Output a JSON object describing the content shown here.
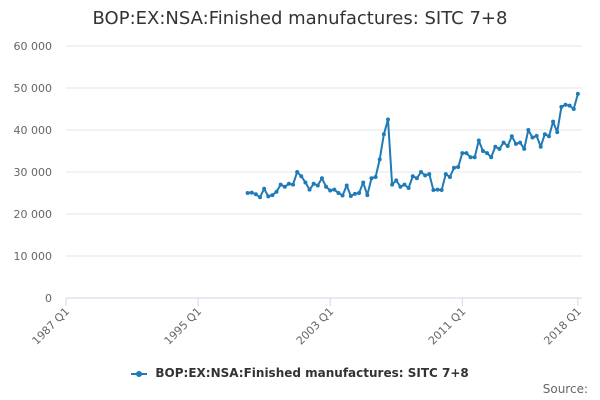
{
  "colors": {
    "series": "#1f7ab8",
    "grid": "#e6e6e6",
    "axis": "#ccd6eb"
  },
  "source_label": "Source:",
  "chart_data": {
    "type": "line",
    "title": "BOP:EX:NSA:Finished manufactures: SITC 7+8",
    "xlabel": "",
    "ylabel": "",
    "x_ticks": [
      "1987 Q1",
      "1995 Q1",
      "2003 Q1",
      "2011 Q1",
      "2018 Q1"
    ],
    "y_ticks": [
      "0",
      "10 000",
      "20 000",
      "30 000",
      "40 000",
      "50 000",
      "60 000"
    ],
    "x_range": [
      1987.0,
      2018.25
    ],
    "ylim": [
      0,
      60000
    ],
    "grid": "horizontal",
    "legend": "bottom-center",
    "series": [
      {
        "name": "BOP:EX:NSA:Finished manufactures: SITC 7+8",
        "x": [
          1998.0,
          1998.25,
          1998.5,
          1998.75,
          1999.0,
          1999.25,
          1999.5,
          1999.75,
          2000.0,
          2000.25,
          2000.5,
          2000.75,
          2001.0,
          2001.25,
          2001.5,
          2001.75,
          2002.0,
          2002.25,
          2002.5,
          2002.75,
          2003.0,
          2003.25,
          2003.5,
          2003.75,
          2004.0,
          2004.25,
          2004.5,
          2004.75,
          2005.0,
          2005.25,
          2005.5,
          2005.75,
          2006.0,
          2006.25,
          2006.5,
          2006.75,
          2007.0,
          2007.25,
          2007.5,
          2007.75,
          2008.0,
          2008.25,
          2008.5,
          2008.75,
          2009.0,
          2009.25,
          2009.5,
          2009.75,
          2010.0,
          2010.25,
          2010.5,
          2010.75,
          2011.0,
          2011.25,
          2011.5,
          2011.75,
          2012.0,
          2012.25,
          2012.5,
          2012.75,
          2013.0,
          2013.25,
          2013.5,
          2013.75,
          2014.0,
          2014.25,
          2014.5,
          2014.75,
          2015.0,
          2015.25,
          2015.5,
          2015.75,
          2016.0,
          2016.25,
          2016.5,
          2016.75,
          2017.0,
          2017.25,
          2017.5,
          2017.75,
          2018.0
        ],
        "values": [
          25000,
          25100,
          24700,
          24000,
          26000,
          24200,
          24500,
          25300,
          27000,
          26500,
          27200,
          27000,
          30000,
          29000,
          27500,
          25800,
          27200,
          26800,
          28500,
          26500,
          25600,
          25800,
          25000,
          24400,
          26800,
          24300,
          24800,
          25000,
          27500,
          24500,
          28500,
          28800,
          33000,
          39000,
          42500,
          27000,
          28000,
          26500,
          27000,
          26200,
          29000,
          28500,
          30000,
          29200,
          29500,
          25700,
          25800,
          25700,
          29500,
          28800,
          31000,
          31200,
          34500,
          34500,
          33500,
          33500,
          37500,
          35000,
          34500,
          33500,
          36000,
          35500,
          37000,
          36200,
          38500,
          36700,
          37000,
          35500,
          40000,
          38200,
          38600,
          36000,
          39000,
          38500,
          42000,
          39500,
          45500,
          46000,
          45800,
          45000,
          48600
        ]
      }
    ]
  }
}
